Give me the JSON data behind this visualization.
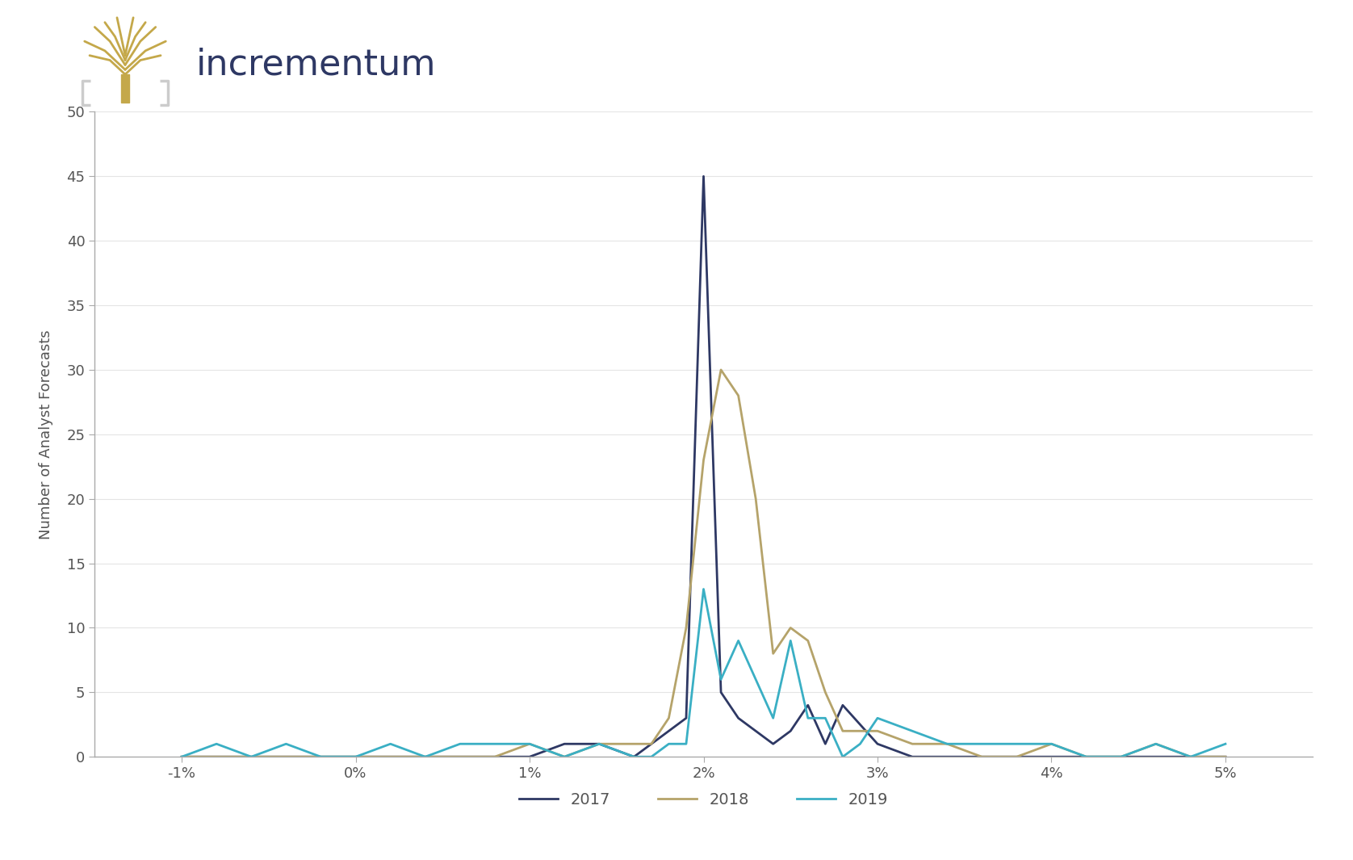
{
  "ylabel": "Number of Analyst Forecasts",
  "xlim": [
    -1.5,
    5.5
  ],
  "ylim": [
    0,
    50
  ],
  "yticks": [
    0,
    5,
    10,
    15,
    20,
    25,
    30,
    35,
    40,
    45,
    50
  ],
  "xtick_labels": [
    "-1%",
    "0%",
    "1%",
    "2%",
    "3%",
    "4%",
    "5%"
  ],
  "xtick_positions": [
    -1,
    0,
    1,
    2,
    3,
    4,
    5
  ],
  "series": {
    "2017": {
      "color": "#2E3864",
      "x": [
        -1.0,
        -0.8,
        -0.6,
        -0.4,
        -0.2,
        0.0,
        0.2,
        0.4,
        0.6,
        0.8,
        1.0,
        1.2,
        1.4,
        1.6,
        1.7,
        1.8,
        1.9,
        2.0,
        2.1,
        2.2,
        2.4,
        2.5,
        2.6,
        2.7,
        2.8,
        3.0,
        3.2,
        3.4,
        3.6,
        3.8,
        4.0,
        4.2,
        4.4,
        4.6,
        4.8,
        5.0
      ],
      "y": [
        0,
        0,
        0,
        0,
        0,
        0,
        0,
        0,
        0,
        0,
        0,
        1,
        1,
        0,
        1,
        2,
        3,
        45,
        5,
        3,
        1,
        2,
        4,
        1,
        4,
        1,
        0,
        0,
        0,
        0,
        0,
        0,
        0,
        0,
        0,
        0
      ]
    },
    "2018": {
      "color": "#B5A36A",
      "x": [
        -1.0,
        -0.8,
        -0.6,
        -0.4,
        -0.2,
        0.0,
        0.2,
        0.4,
        0.6,
        0.8,
        1.0,
        1.2,
        1.4,
        1.6,
        1.7,
        1.8,
        1.9,
        2.0,
        2.1,
        2.2,
        2.3,
        2.4,
        2.5,
        2.6,
        2.7,
        2.8,
        3.0,
        3.2,
        3.4,
        3.6,
        3.8,
        4.0,
        4.2,
        4.4,
        4.6,
        4.8,
        5.0
      ],
      "y": [
        0,
        0,
        0,
        0,
        0,
        0,
        0,
        0,
        0,
        0,
        1,
        0,
        1,
        1,
        1,
        3,
        10,
        23,
        30,
        28,
        20,
        8,
        10,
        9,
        5,
        2,
        2,
        1,
        1,
        0,
        0,
        1,
        0,
        0,
        1,
        0,
        0
      ]
    },
    "2019": {
      "color": "#3AAFC4",
      "x": [
        -1.0,
        -0.8,
        -0.6,
        -0.4,
        -0.2,
        0.0,
        0.2,
        0.4,
        0.6,
        0.8,
        1.0,
        1.2,
        1.4,
        1.6,
        1.7,
        1.8,
        1.9,
        2.0,
        2.1,
        2.2,
        2.4,
        2.5,
        2.6,
        2.7,
        2.8,
        2.9,
        3.0,
        3.2,
        3.4,
        3.6,
        3.8,
        4.0,
        4.2,
        4.4,
        4.6,
        4.8,
        5.0
      ],
      "y": [
        0,
        1,
        0,
        1,
        0,
        0,
        1,
        0,
        1,
        1,
        1,
        0,
        1,
        0,
        0,
        1,
        1,
        13,
        6,
        9,
        3,
        9,
        3,
        3,
        0,
        1,
        3,
        2,
        1,
        1,
        1,
        1,
        0,
        0,
        1,
        0,
        1
      ]
    }
  },
  "legend_labels": [
    "2017",
    "2018",
    "2019"
  ],
  "legend_colors": [
    "#2E3864",
    "#B5A36A",
    "#3AAFC4"
  ],
  "logo_text": "incrementum",
  "logo_color": "#2E3864",
  "logo_gold": "#C4A84A",
  "logo_gray": "#CCCCCC",
  "background_color": "#FFFFFF",
  "spine_color": "#AAAAAA",
  "grid_color": "#E5E5E5",
  "tick_color": "#555555"
}
